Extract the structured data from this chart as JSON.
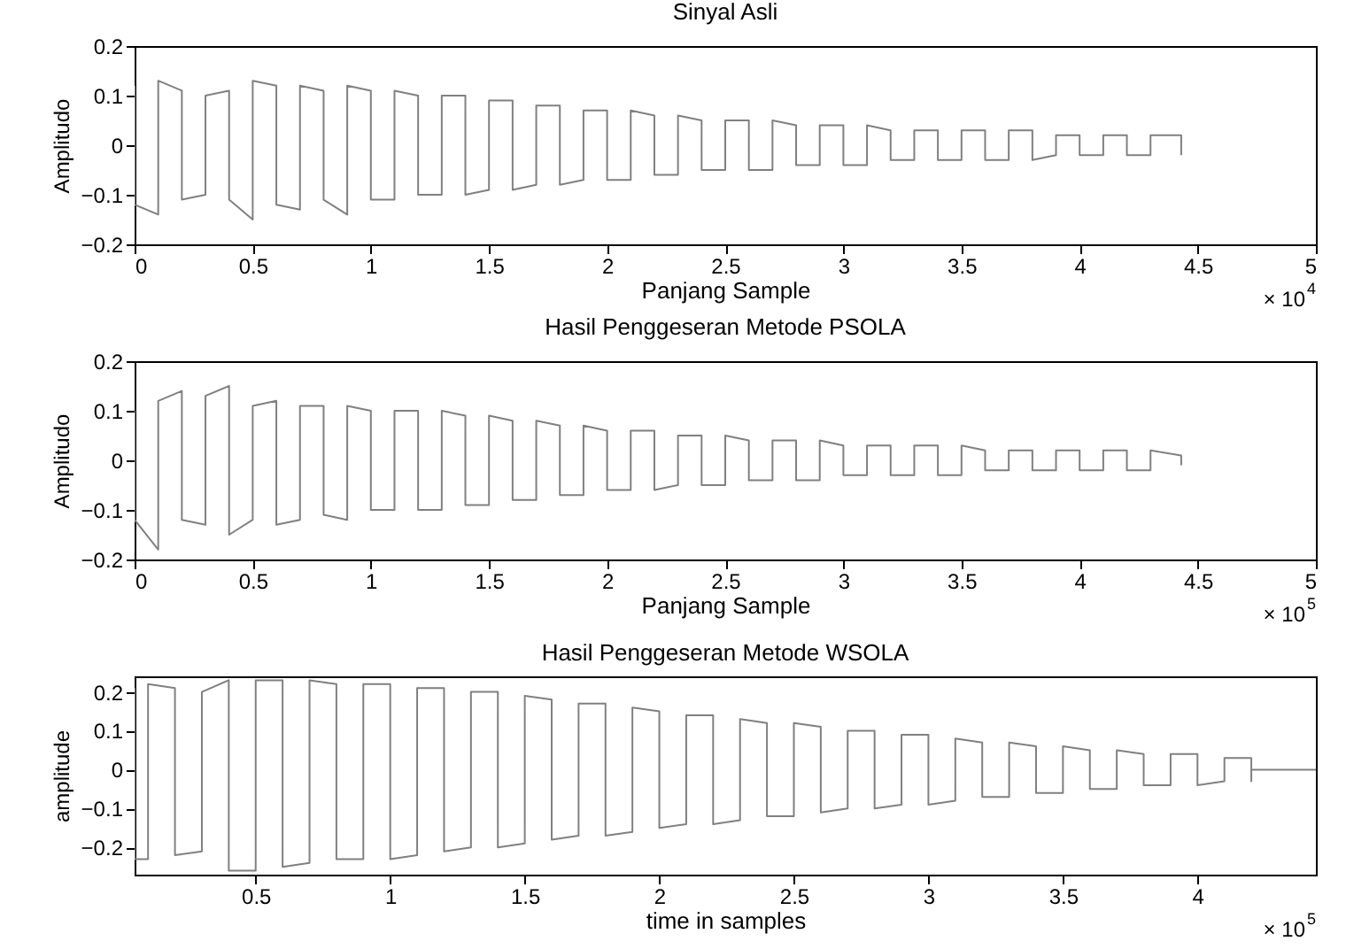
{
  "chart_data": [
    {
      "type": "line",
      "title": "Sinyal Asli",
      "xlabel": "Panjang Sample",
      "ylabel": "Amplitudo",
      "xlim": [
        0,
        5
      ],
      "xticks": [
        0,
        0.5,
        1,
        1.5,
        2,
        2.5,
        3,
        3.5,
        4,
        4.5,
        5
      ],
      "ylim": [
        -0.2,
        0.2
      ],
      "yticks": [
        -0.2,
        -0.1,
        0,
        0.1,
        0.2
      ],
      "annotations": [
        "× 10$^{4}$"
      ],
      "series": [
        {
          "color": "#808080",
          "x": [
            0,
            0,
            0.1,
            0.1,
            0.2,
            0.2,
            0.3,
            0.3,
            0.4,
            0.4,
            0.5,
            0.5,
            0.6,
            0.6,
            0.7,
            0.7,
            0.8,
            0.8,
            0.9,
            0.9,
            1,
            1,
            1.1,
            1.1,
            1.2,
            1.2,
            1.3,
            1.3,
            1.4,
            1.4,
            1.5,
            1.5,
            1.6,
            1.6,
            1.7,
            1.7,
            1.8,
            1.8,
            1.9,
            1.9,
            2,
            2,
            2.1,
            2.1,
            2.2,
            2.2,
            2.3,
            2.3,
            2.4,
            2.4,
            2.5,
            2.5,
            2.6,
            2.6,
            2.7,
            2.7,
            2.8,
            2.8,
            2.9,
            2.9,
            3,
            3,
            3.1,
            3.1,
            3.2,
            3.2,
            3.3,
            3.3,
            3.4,
            3.4,
            3.5,
            3.5,
            3.6,
            3.6,
            3.7,
            3.7,
            3.8,
            3.8,
            3.9,
            3.9,
            4,
            4,
            4.1,
            4.1,
            4.2,
            4.2,
            4.3,
            4.3,
            4.43,
            4.43
          ],
          "values": [
            0.12,
            -0.12,
            -0.14,
            0.13,
            0.11,
            -0.11,
            -0.1,
            0.1,
            0.11,
            -0.11,
            -0.15,
            0.13,
            0.12,
            -0.12,
            -0.13,
            0.12,
            0.11,
            -0.11,
            -0.14,
            0.12,
            0.11,
            -0.11,
            -0.11,
            0.11,
            0.1,
            -0.1,
            -0.1,
            0.1,
            0.1,
            -0.1,
            -0.09,
            0.09,
            0.09,
            -0.09,
            -0.08,
            0.08,
            0.08,
            -0.08,
            -0.07,
            0.07,
            0.07,
            -0.07,
            -0.07,
            0.07,
            0.06,
            -0.06,
            -0.06,
            0.06,
            0.05,
            -0.05,
            -0.05,
            0.05,
            0.05,
            -0.05,
            -0.05,
            0.05,
            0.04,
            -0.04,
            -0.04,
            0.04,
            0.04,
            -0.04,
            -0.04,
            0.04,
            0.03,
            -0.03,
            -0.03,
            0.03,
            0.03,
            -0.03,
            -0.03,
            0.03,
            0.03,
            -0.03,
            -0.03,
            0.03,
            0.03,
            -0.03,
            -0.02,
            0.02,
            0.02,
            -0.02,
            -0.02,
            0.02,
            0.02,
            -0.02,
            -0.02,
            0.02,
            0.02,
            -0.02
          ]
        }
      ]
    },
    {
      "type": "line",
      "title": "Hasil Penggeseran Metode PSOLA",
      "xlabel": "Panjang Sample",
      "ylabel": "Amplitudo",
      "xlim": [
        0,
        5
      ],
      "xticks": [
        0,
        0.5,
        1,
        1.5,
        2,
        2.5,
        3,
        3.5,
        4,
        4.5,
        5
      ],
      "ylim": [
        -0.2,
        0.2
      ],
      "yticks": [
        -0.2,
        -0.1,
        0,
        0.1,
        0.2
      ],
      "annotations": [
        "× 10$^{5}$"
      ],
      "series": [
        {
          "color": "#808080",
          "x": [
            0,
            0,
            0.1,
            0.1,
            0.2,
            0.2,
            0.3,
            0.3,
            0.4,
            0.4,
            0.5,
            0.5,
            0.6,
            0.6,
            0.7,
            0.7,
            0.8,
            0.8,
            0.9,
            0.9,
            1,
            1,
            1.1,
            1.1,
            1.2,
            1.2,
            1.3,
            1.3,
            1.4,
            1.4,
            1.5,
            1.5,
            1.6,
            1.6,
            1.7,
            1.7,
            1.8,
            1.8,
            1.9,
            1.9,
            2,
            2,
            2.1,
            2.1,
            2.2,
            2.2,
            2.3,
            2.3,
            2.4,
            2.4,
            2.5,
            2.5,
            2.6,
            2.6,
            2.7,
            2.7,
            2.8,
            2.8,
            2.9,
            2.9,
            3,
            3,
            3.1,
            3.1,
            3.2,
            3.2,
            3.3,
            3.3,
            3.4,
            3.4,
            3.5,
            3.5,
            3.6,
            3.6,
            3.7,
            3.7,
            3.8,
            3.8,
            3.9,
            3.9,
            4,
            4,
            4.1,
            4.1,
            4.2,
            4.2,
            4.3,
            4.3,
            4.43,
            4.43
          ],
          "values": [
            0.1,
            -0.12,
            -0.18,
            0.12,
            0.14,
            -0.12,
            -0.13,
            0.13,
            0.15,
            -0.15,
            -0.12,
            0.11,
            0.12,
            -0.13,
            -0.12,
            0.11,
            0.11,
            -0.11,
            -0.12,
            0.11,
            0.1,
            -0.1,
            -0.1,
            0.1,
            0.1,
            -0.1,
            -0.1,
            0.1,
            0.09,
            -0.09,
            -0.09,
            0.09,
            0.08,
            -0.08,
            -0.08,
            0.08,
            0.07,
            -0.07,
            -0.07,
            0.07,
            0.06,
            -0.06,
            -0.06,
            0.06,
            0.06,
            -0.06,
            -0.05,
            0.05,
            0.05,
            -0.05,
            -0.05,
            0.05,
            0.04,
            -0.04,
            -0.04,
            0.04,
            0.04,
            -0.04,
            -0.04,
            0.04,
            0.03,
            -0.03,
            -0.03,
            0.03,
            0.03,
            -0.03,
            -0.03,
            0.03,
            0.03,
            -0.03,
            -0.03,
            0.03,
            0.02,
            -0.02,
            -0.02,
            0.02,
            0.02,
            -0.02,
            -0.02,
            0.02,
            0.02,
            -0.02,
            -0.02,
            0.02,
            0.02,
            -0.02,
            -0.02,
            0.02,
            0.01,
            -0.01
          ]
        }
      ]
    },
    {
      "type": "line",
      "title": "Hasil Penggeseran Metode WSOLA",
      "xlabel": "time in samples",
      "ylabel": "amplitude",
      "xlim": [
        0.05,
        4.44
      ],
      "xticks": [
        0.5,
        1,
        1.5,
        2,
        2.5,
        3,
        3.5,
        4
      ],
      "ylim": [
        -0.27,
        0.24
      ],
      "yticks": [
        -0.2,
        -0.1,
        0,
        0.1,
        0.2
      ],
      "annotations": [
        "× 10$^{5}$"
      ],
      "series": [
        {
          "color": "#808080",
          "x": [
            0.05,
            0.05,
            0.1,
            0.1,
            0.2,
            0.2,
            0.3,
            0.3,
            0.4,
            0.4,
            0.5,
            0.5,
            0.6,
            0.6,
            0.7,
            0.7,
            0.8,
            0.8,
            0.9,
            0.9,
            1,
            1,
            1.1,
            1.1,
            1.2,
            1.2,
            1.3,
            1.3,
            1.4,
            1.4,
            1.5,
            1.5,
            1.6,
            1.6,
            1.7,
            1.7,
            1.8,
            1.8,
            1.9,
            1.9,
            2,
            2,
            2.1,
            2.1,
            2.2,
            2.2,
            2.3,
            2.3,
            2.4,
            2.4,
            2.5,
            2.5,
            2.6,
            2.6,
            2.7,
            2.7,
            2.8,
            2.8,
            2.9,
            2.9,
            3,
            3,
            3.1,
            3.1,
            3.2,
            3.2,
            3.3,
            3.3,
            3.4,
            3.4,
            3.5,
            3.5,
            3.6,
            3.6,
            3.7,
            3.7,
            3.8,
            3.8,
            3.9,
            3.9,
            4,
            4,
            4.1,
            4.1,
            4.2,
            4.2,
            4.2,
            4.44
          ],
          "values": [
            0.21,
            -0.23,
            -0.23,
            0.22,
            0.21,
            -0.22,
            -0.21,
            0.2,
            0.23,
            -0.26,
            -0.26,
            0.23,
            0.23,
            -0.25,
            -0.24,
            0.23,
            0.22,
            -0.23,
            -0.23,
            0.22,
            0.22,
            -0.23,
            -0.22,
            0.21,
            0.21,
            -0.21,
            -0.2,
            0.2,
            0.2,
            -0.2,
            -0.19,
            0.19,
            0.18,
            -0.18,
            -0.17,
            0.17,
            0.17,
            -0.17,
            -0.16,
            0.16,
            0.15,
            -0.15,
            -0.14,
            0.14,
            0.14,
            -0.14,
            -0.13,
            0.13,
            0.12,
            -0.12,
            -0.12,
            0.12,
            0.11,
            -0.11,
            -0.1,
            0.1,
            0.1,
            -0.1,
            -0.09,
            0.09,
            0.09,
            -0.09,
            -0.08,
            0.08,
            0.07,
            -0.07,
            -0.07,
            0.07,
            0.06,
            -0.06,
            -0.06,
            0.06,
            0.05,
            -0.05,
            -0.05,
            0.05,
            0.04,
            -0.04,
            -0.04,
            0.04,
            0.04,
            -0.04,
            -0.03,
            0.03,
            0.03,
            -0.03,
            0,
            0
          ]
        }
      ]
    }
  ]
}
